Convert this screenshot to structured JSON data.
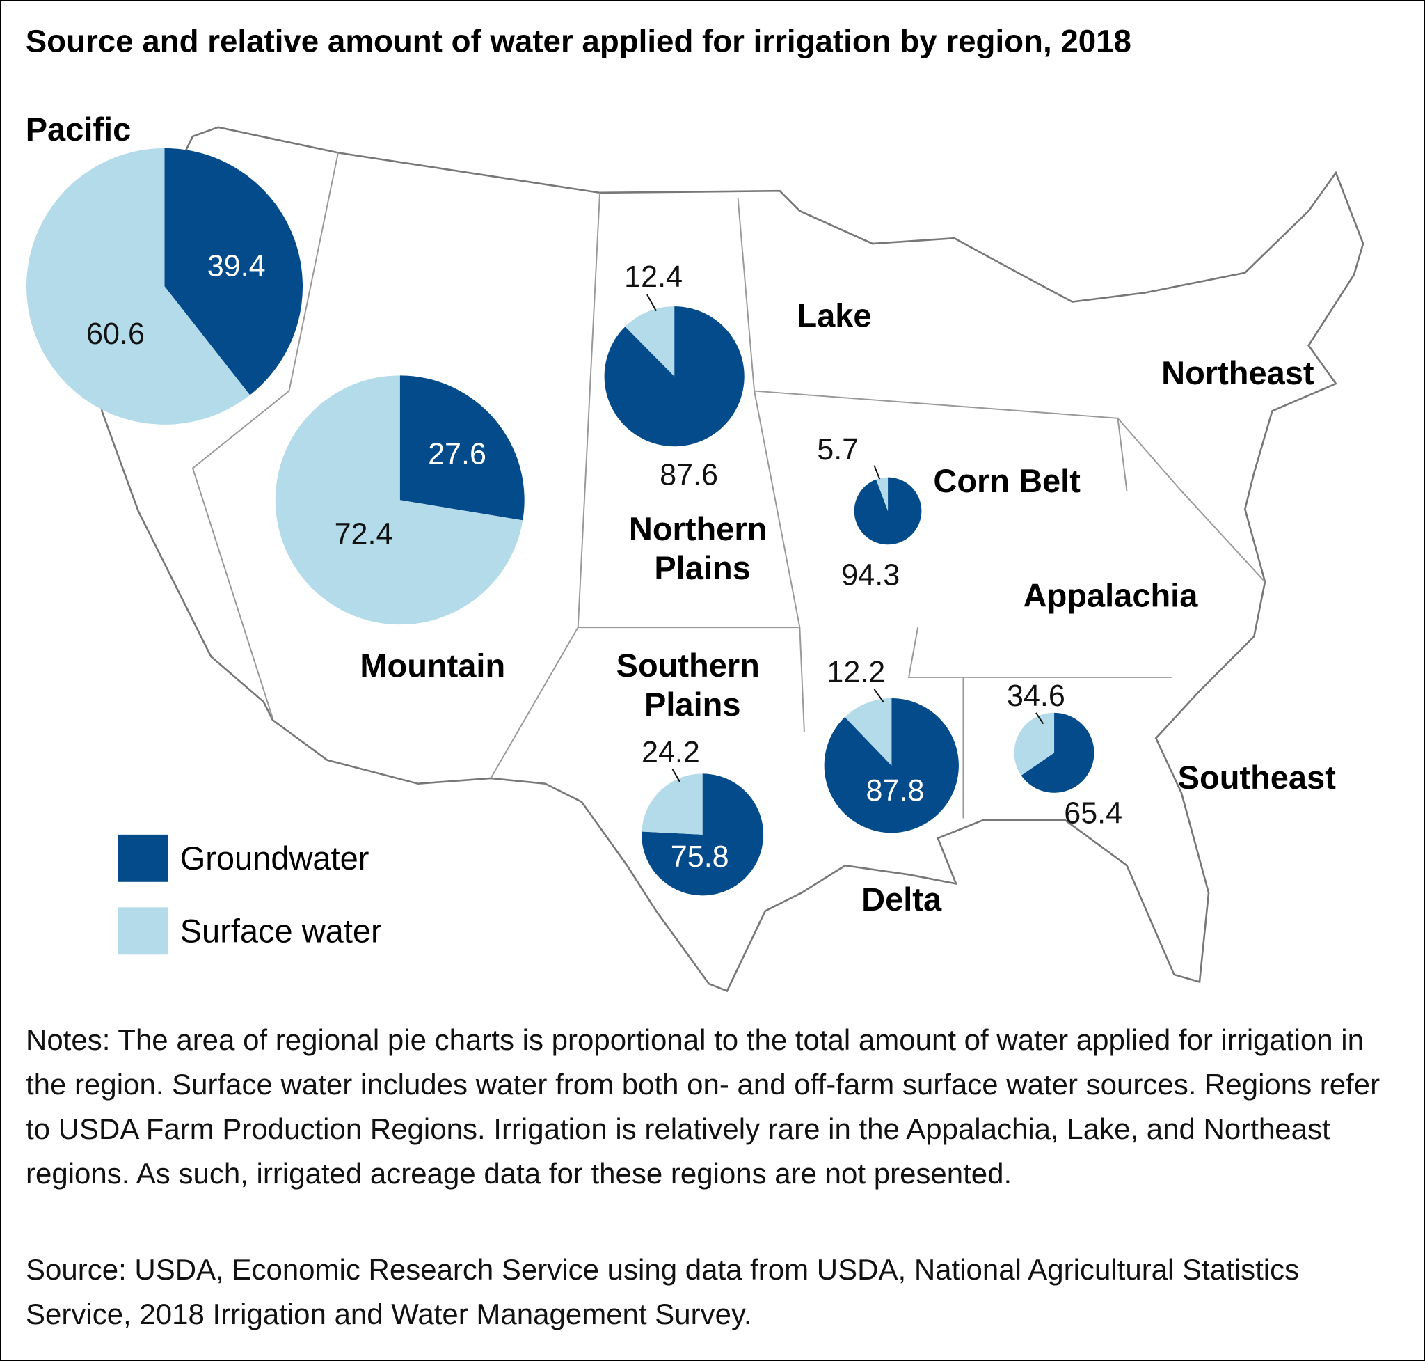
{
  "chart_data": {
    "type": "pie",
    "title": "Source and relative amount of water applied for irrigation by region, 2018",
    "series": [
      {
        "name": "Groundwater",
        "color": "#034b8b"
      },
      {
        "name": "Surface water",
        "color": "#b3dbe9"
      }
    ],
    "regions": [
      {
        "name": "Pacific",
        "values": [
          39.4,
          60.6
        ]
      },
      {
        "name": "Mountain",
        "values": [
          27.6,
          72.4
        ]
      },
      {
        "name": "Northern Plains",
        "values": [
          87.6,
          12.4
        ]
      },
      {
        "name": "Corn Belt",
        "values": [
          94.3,
          5.7
        ]
      },
      {
        "name": "Southern Plains",
        "values": [
          75.8,
          24.2
        ]
      },
      {
        "name": "Delta",
        "values": [
          87.8,
          12.2
        ]
      },
      {
        "name": "Southeast",
        "values": [
          65.4,
          34.6
        ]
      },
      {
        "name": "Lake"
      },
      {
        "name": "Northeast"
      },
      {
        "name": "Appalachia"
      }
    ]
  },
  "notes": "Notes: The area of regional pie charts is proportional to the total amount of water applied for irrigation in the region. Surface water includes water from both on- and off-farm surface water sources. Regions refer to USDA Farm Production Regions. Irrigation is relatively rare in the Appalachia, Lake, and Northeast regions. As such, irrigated acreage data for these regions are not presented.",
  "source": "Source: USDA, Economic Research Service using data from USDA, National Agricultural Statistics Service, 2018 Irrigation and Water Management Survey."
}
